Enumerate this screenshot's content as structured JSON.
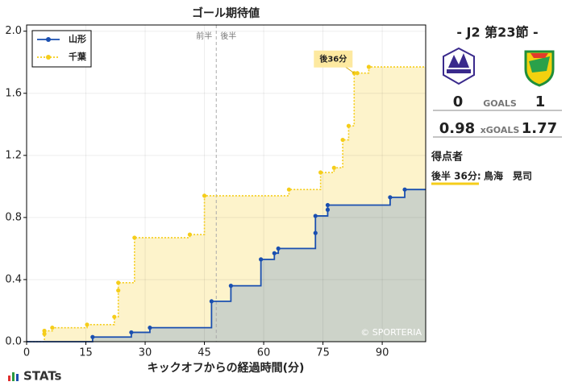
{
  "chart_data": {
    "type": "step",
    "title": "ゴール期待値",
    "x_label": "キックオフからの経過時間(分)",
    "xlim": [
      0,
      101
    ],
    "xticks": [
      0,
      15,
      30,
      45,
      60,
      75,
      90
    ],
    "ylim": [
      0,
      2.04
    ],
    "yticks": [
      {
        "value": 0,
        "label": "0.0"
      },
      0.4,
      0.8,
      1.2,
      1.6,
      {
        "value": 2,
        "label": "2.0"
      }
    ],
    "grid": true,
    "legend": "upper left",
    "half_line": 48,
    "half_labels": [
      "前半",
      "後半"
    ],
    "annotation": "後36分",
    "watermark": "© SPORTERIA",
    "series": [
      {
        "name": "山形",
        "color": "#1a4fb0",
        "fill": "#cdd3c9",
        "x": [
          16.7,
          26.5,
          31.2,
          46.8,
          51.7,
          59.3,
          62.7,
          63.7,
          73.1,
          73.1,
          76.2,
          76.2,
          92,
          95.7
        ],
        "values": [
          0.03,
          0.06,
          0.09,
          0.26,
          0.36,
          0.53,
          0.57,
          0.6,
          0.7,
          0.81,
          0.85,
          0.88,
          0.93,
          0.98
        ]
      },
      {
        "name": "千葉",
        "color": "#f5cd1a",
        "fill": "#fdf3cb",
        "x": [
          4.5,
          4.5,
          6.5,
          15.3,
          22.2,
          23.2,
          23.2,
          27.3,
          41.3,
          45,
          66.4,
          74.4,
          77.8,
          80,
          81.5,
          82.9,
          83.7,
          86.6
        ],
        "values": [
          0.05,
          0.07,
          0.09,
          0.11,
          0.16,
          0.33,
          0.38,
          0.67,
          0.69,
          0.94,
          0.98,
          1.09,
          1.12,
          1.3,
          1.39,
          1.73,
          1.73,
          1.77
        ]
      }
    ]
  },
  "match_panel": {
    "title": "- J2 第23節 -",
    "home_goals": 0,
    "goals_label": "GOALS",
    "away_goals": 1,
    "home_xg": 0.98,
    "xg_label": "xGOALS",
    "away_xg": 1.77,
    "scorers_title": "得点者",
    "scorer_time": "後半 36分:",
    "scorer_name": "鳥海　晃司"
  },
  "brand": "STATs"
}
